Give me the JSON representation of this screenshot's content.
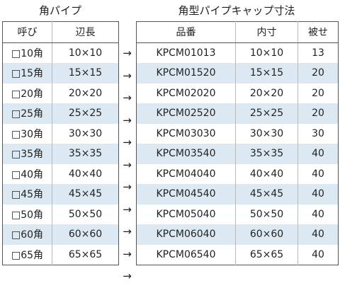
{
  "left": {
    "title": "角パイプ",
    "headers": [
      "呼び",
      "辺長"
    ],
    "rows": [
      [
        "□10角",
        "10×10"
      ],
      [
        "□15角",
        "15×15"
      ],
      [
        "□20角",
        "20×20"
      ],
      [
        "□25角",
        "25×25"
      ],
      [
        "□30角",
        "30×30"
      ],
      [
        "□35角",
        "35×35"
      ],
      [
        "□40角",
        "40×40"
      ],
      [
        "□45角",
        "45×45"
      ],
      [
        "□50角",
        "50×50"
      ],
      [
        "□60角",
        "60×60"
      ],
      [
        "□65角",
        "65×65"
      ]
    ]
  },
  "arrow": "→",
  "right": {
    "title": "角型パイプキャップ寸法",
    "headers": [
      "品番",
      "内寸",
      "被せ"
    ],
    "rows": [
      [
        "KPCM01013",
        "10×10",
        "13"
      ],
      [
        "KPCM01520",
        "15×15",
        "20"
      ],
      [
        "KPCM02020",
        "20×20",
        "20"
      ],
      [
        "KPCM02520",
        "25×25",
        "20"
      ],
      [
        "KPCM03030",
        "30×30",
        "30"
      ],
      [
        "KPCM03540",
        "35×35",
        "40"
      ],
      [
        "KPCM04040",
        "40×40",
        "40"
      ],
      [
        "KPCM04540",
        "45×45",
        "40"
      ],
      [
        "KPCM05040",
        "50×50",
        "40"
      ],
      [
        "KPCM06040",
        "60×60",
        "40"
      ],
      [
        "KPCM06540",
        "65×65",
        "40"
      ]
    ]
  },
  "colors": {
    "alt_row": "#dce9f3",
    "border": "#555555"
  }
}
